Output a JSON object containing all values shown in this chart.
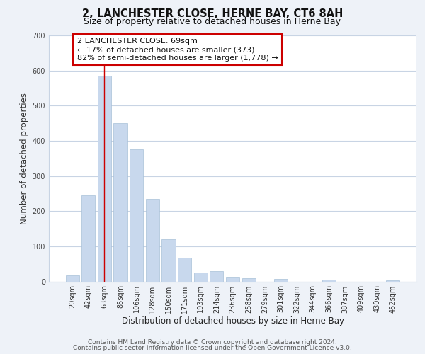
{
  "title": "2, LANCHESTER CLOSE, HERNE BAY, CT6 8AH",
  "subtitle": "Size of property relative to detached houses in Herne Bay",
  "xlabel": "Distribution of detached houses by size in Herne Bay",
  "ylabel": "Number of detached properties",
  "bar_labels": [
    "20sqm",
    "42sqm",
    "63sqm",
    "85sqm",
    "106sqm",
    "128sqm",
    "150sqm",
    "171sqm",
    "193sqm",
    "214sqm",
    "236sqm",
    "258sqm",
    "279sqm",
    "301sqm",
    "322sqm",
    "344sqm",
    "366sqm",
    "387sqm",
    "409sqm",
    "430sqm",
    "452sqm"
  ],
  "bar_values": [
    18,
    245,
    585,
    450,
    375,
    235,
    120,
    67,
    25,
    30,
    13,
    10,
    0,
    8,
    0,
    0,
    5,
    0,
    0,
    0,
    3
  ],
  "bar_color": "#c8d8ed",
  "bar_edge_color": "#a8c0d8",
  "vline_x": 2,
  "vline_color": "#cc0000",
  "annotation_line1": "2 LANCHESTER CLOSE: 69sqm",
  "annotation_line2": "← 17% of detached houses are smaller (373)",
  "annotation_line3": "82% of semi-detached houses are larger (1,778) →",
  "annotation_box_color": "#cc0000",
  "ylim": [
    0,
    700
  ],
  "yticks": [
    0,
    100,
    200,
    300,
    400,
    500,
    600,
    700
  ],
  "background_color": "#eef2f8",
  "plot_background": "#ffffff",
  "grid_color": "#c8d4e4",
  "title_fontsize": 10.5,
  "subtitle_fontsize": 9,
  "axis_label_fontsize": 8.5,
  "tick_fontsize": 7,
  "annotation_fontsize": 8,
  "footer_fontsize": 6.5,
  "footer_line1": "Contains HM Land Registry data © Crown copyright and database right 2024.",
  "footer_line2": "Contains public sector information licensed under the Open Government Licence v3.0."
}
